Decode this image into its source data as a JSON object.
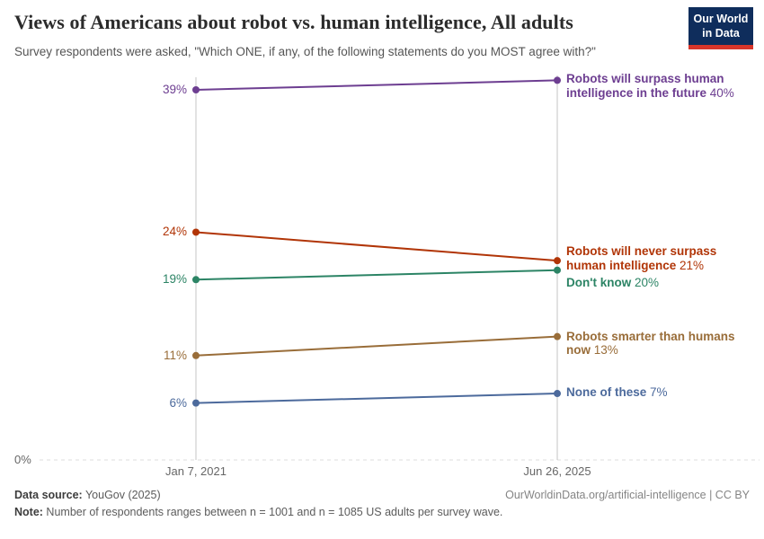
{
  "header": {
    "title": "Views of Americans about robot vs. human intelligence, All adults",
    "subtitle": "Survey respondents were asked, \"Which ONE, if any, of the following statements do you MOST agree with?\"",
    "logo_line1": "Our World",
    "logo_line2": "in Data"
  },
  "chart_data": {
    "type": "line",
    "subtype": "slope",
    "x": [
      "Jan 7, 2021",
      "Jun 26, 2025"
    ],
    "series": [
      {
        "name": "Robots will surpass human intelligence in the future",
        "values": [
          39,
          40
        ],
        "color": "#6d3e91"
      },
      {
        "name": "Robots will never surpass human intelligence",
        "values": [
          24,
          21
        ],
        "color": "#b13507"
      },
      {
        "name": "Don't know",
        "values": [
          19,
          20
        ],
        "color": "#2c8465"
      },
      {
        "name": "Robots smarter than humans now",
        "values": [
          11,
          13
        ],
        "color": "#996d39"
      },
      {
        "name": "None of these",
        "values": [
          6,
          7
        ],
        "color": "#4c6a9c"
      }
    ],
    "unit": "%",
    "ylim": [
      0,
      42
    ],
    "baseline_label": "0%",
    "grid": "dashed baseline at 0% only",
    "legend_position": "labels right of lines"
  },
  "footer": {
    "datasource_label": "Data source:",
    "datasource_value": " YouGov (2025)",
    "link": "OurWorldinData.org/artificial-intelligence | CC BY",
    "note_label": "Note:",
    "note_value": " Number of respondents ranges between n = 1001 and n = 1085 US adults per survey wave."
  },
  "colors": {
    "axis": "#c4c4c4",
    "gridline": "#dcdcdc",
    "title": "#2b2b2b",
    "subtitle": "#555555",
    "logo_bg": "#0f2d5c",
    "logo_stripe": "#d8352a"
  }
}
